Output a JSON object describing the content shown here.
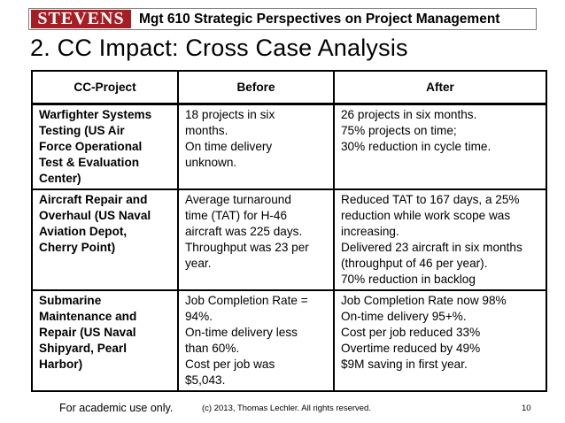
{
  "header": {
    "logo_text": "STEVENS",
    "course_title": "Mgt 610 Strategic Perspectives on Project Management"
  },
  "slide": {
    "title": "2. CC Impact: Cross Case Analysis"
  },
  "table": {
    "columns": [
      "CC-Project",
      "Before",
      "After"
    ],
    "rows": [
      {
        "project": [
          "Warfighter Systems",
          "Testing (US Air",
          "Force Operational",
          "Test & Evaluation",
          "Center)"
        ],
        "before": [
          "18 projects in six",
          "months.",
          "On time delivery",
          "unknown."
        ],
        "after": [
          "26 projects in six months.",
          "75% projects on time;",
          "30% reduction in cycle time."
        ]
      },
      {
        "project": [
          "Aircraft Repair and",
          "Overhaul (US Naval",
          "Aviation Depot,",
          "Cherry Point)"
        ],
        "before": [
          "Average turnaround",
          "time (TAT) for H-46",
          "aircraft was 225 days.",
          "Throughput was 23 per",
          "year."
        ],
        "after": [
          "Reduced TAT to 167 days, a 25%",
          "reduction while work scope was",
          "increasing.",
          "Delivered 23 aircraft in six months",
          "(throughput of 46 per year).",
          "70% reduction in backlog"
        ]
      },
      {
        "project": [
          "Submarine",
          "Maintenance and",
          "Repair (US Naval",
          "Shipyard, Pearl",
          "Harbor)"
        ],
        "before": [
          "Job Completion Rate =",
          "94%.",
          "On-time delivery less",
          "than 60%.",
          "Cost per job was",
          "$5,043."
        ],
        "after": [
          "Job Completion Rate now 98%",
          "On-time delivery 95+%.",
          "Cost per job reduced 33%",
          "Overtime reduced by 49%",
          "$9M saving in first year."
        ]
      }
    ]
  },
  "footer": {
    "left": "For academic use only.",
    "center": "(c) 2013, Thomas Lechler. All rights reserved.",
    "page_number": "10"
  },
  "colors": {
    "logo_background": "#a61d24",
    "logo_text": "#ffffff"
  }
}
